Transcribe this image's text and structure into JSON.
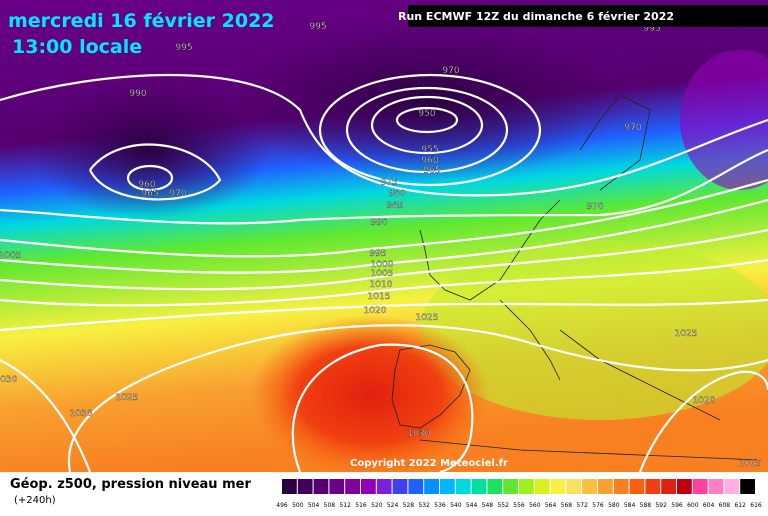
{
  "header": {
    "date": "mercredi 16 février 2022",
    "time": "13:00 locale",
    "run": "Run ECMWF 12Z du dimanche 6 février 2022"
  },
  "copyright": "Copyright 2022 Meteociel.fr",
  "legend": {
    "title": "Géop. z500, pression niveau mer",
    "lead": "(+240h)",
    "scale_labels": [
      496,
      500,
      504,
      508,
      512,
      516,
      520,
      524,
      528,
      532,
      536,
      540,
      544,
      548,
      552,
      556,
      560,
      564,
      568,
      572,
      576,
      580,
      584,
      588,
      592,
      596,
      600,
      604,
      608,
      612,
      616
    ],
    "scale_colors": [
      "#2a0040",
      "#40005a",
      "#560070",
      "#6a0088",
      "#8000a0",
      "#9400b8",
      "#7a20d8",
      "#4040f0",
      "#2060ff",
      "#0090ff",
      "#00b8ff",
      "#00d8e0",
      "#00e0a0",
      "#20e060",
      "#60e830",
      "#a0f020",
      "#d8f020",
      "#f8f040",
      "#f8e060",
      "#f8c040",
      "#f8a030",
      "#f88020",
      "#f86010",
      "#f04010",
      "#e02010",
      "#c00010",
      "#ff40a0",
      "#ff80c0",
      "#ffb0e0",
      "#000000"
    ]
  },
  "isobar_labels": [
    995,
    995,
    990,
    970,
    950,
    970,
    955,
    960,
    965,
    960,
    965,
    970,
    975,
    980,
    985,
    970,
    990,
    1005,
    995,
    1000,
    1005,
    1010,
    1015,
    1020,
    1025,
    1025,
    1030,
    1025,
    1030,
    1020,
    1030,
    1015,
    995
  ]
}
